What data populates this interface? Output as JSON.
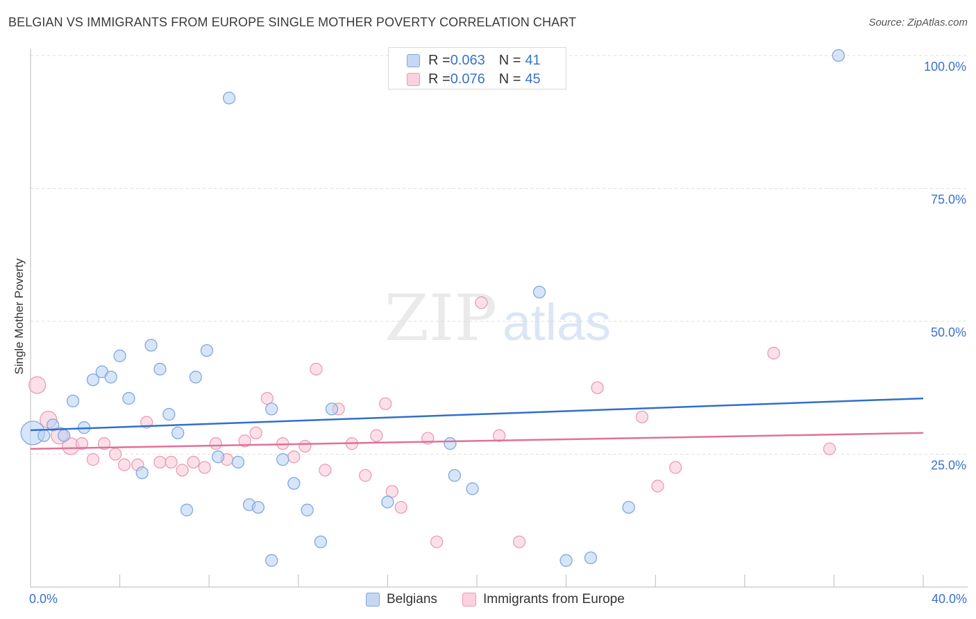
{
  "title": "BELGIAN VS IMMIGRANTS FROM EUROPE SINGLE MOTHER POVERTY CORRELATION CHART",
  "source": "Source: ZipAtlas.com",
  "watermark": {
    "zip": "ZIP",
    "atlas": "atlas"
  },
  "legend": {
    "rows": [
      {
        "r_label": "R = ",
        "r_value": "0.063",
        "n_label": "N = ",
        "n_value": "41"
      },
      {
        "r_label": "R = ",
        "r_value": "0.076",
        "n_label": "N = ",
        "n_value": "45"
      }
    ]
  },
  "colors": {
    "belgians_fill": "#b7d0f2",
    "belgians_stroke": "#7fa8e0",
    "belgians_line": "#2f6fcc",
    "immigrants_fill": "#f8c6d5",
    "immigrants_stroke": "#ec9bb4",
    "immigrants_line": "#e0709a",
    "axis_text": "#3a72c9",
    "grid": "#dddddd"
  },
  "chart_data": {
    "type": "scatter",
    "title": "BELGIAN VS IMMIGRANTS FROM EUROPE SINGLE MOTHER POVERTY CORRELATION CHART",
    "xlabel": "",
    "ylabel": "Single Mother Poverty",
    "xlim": [
      0,
      40
    ],
    "ylim": [
      0,
      102
    ],
    "x_tick_labels": [
      "0.0%",
      "40.0%"
    ],
    "y_ticks": [
      25,
      50,
      75,
      100
    ],
    "y_tick_labels": [
      "25.0%",
      "50.0%",
      "75.0%",
      "100.0%"
    ],
    "grid": "horizontal dashed",
    "legend_placement": "top-center and bottom",
    "series": [
      {
        "name": "Belgians",
        "R": 0.063,
        "N": 41,
        "trend": [
          [
            0,
            29.5
          ],
          [
            40,
            35.5
          ]
        ],
        "points": [
          [
            0.1,
            29.0,
            3
          ],
          [
            0.6,
            28.5,
            1
          ],
          [
            1.0,
            30.5,
            1
          ],
          [
            1.5,
            28.5,
            1
          ],
          [
            1.9,
            35.0,
            1
          ],
          [
            2.4,
            30.0,
            1
          ],
          [
            2.8,
            39.0,
            1
          ],
          [
            3.2,
            40.5,
            1
          ],
          [
            3.6,
            39.5,
            1
          ],
          [
            4.0,
            43.5,
            1
          ],
          [
            4.4,
            35.5,
            1
          ],
          [
            5.0,
            21.5,
            1
          ],
          [
            5.4,
            45.5,
            1
          ],
          [
            5.8,
            41.0,
            1
          ],
          [
            6.2,
            32.5,
            1
          ],
          [
            6.6,
            29.0,
            1
          ],
          [
            7.0,
            14.5,
            1
          ],
          [
            7.4,
            39.5,
            1
          ],
          [
            7.9,
            44.5,
            1
          ],
          [
            8.4,
            24.5,
            1
          ],
          [
            8.9,
            92.0,
            1
          ],
          [
            9.3,
            23.5,
            1
          ],
          [
            9.8,
            15.5,
            1
          ],
          [
            10.2,
            15.0,
            1
          ],
          [
            10.8,
            33.5,
            1
          ],
          [
            10.8,
            5.0,
            1
          ],
          [
            11.3,
            24.0,
            1
          ],
          [
            11.8,
            19.5,
            1
          ],
          [
            12.4,
            14.5,
            1
          ],
          [
            13.0,
            8.5,
            1
          ],
          [
            13.5,
            33.5,
            1
          ],
          [
            16.0,
            16.0,
            1
          ],
          [
            18.8,
            27.0,
            1
          ],
          [
            19.0,
            21.0,
            1
          ],
          [
            19.8,
            18.5,
            1
          ],
          [
            22.8,
            55.5,
            1
          ],
          [
            24.0,
            5.0,
            1
          ],
          [
            25.1,
            5.5,
            1
          ],
          [
            26.8,
            15.0,
            1
          ],
          [
            36.2,
            100.0,
            1
          ]
        ]
      },
      {
        "name": "Immigrants from Europe",
        "R": 0.076,
        "N": 45,
        "trend": [
          [
            0,
            26.0
          ],
          [
            40,
            29.0
          ]
        ],
        "points": [
          [
            0.3,
            38.0,
            2
          ],
          [
            0.8,
            31.5,
            2
          ],
          [
            1.3,
            28.5,
            2
          ],
          [
            1.8,
            26.5,
            2
          ],
          [
            2.3,
            27.0,
            1
          ],
          [
            2.8,
            24.0,
            1
          ],
          [
            3.3,
            27.0,
            1
          ],
          [
            3.8,
            25.0,
            1
          ],
          [
            4.2,
            23.0,
            1
          ],
          [
            4.8,
            23.0,
            1
          ],
          [
            5.2,
            31.0,
            1
          ],
          [
            5.8,
            23.5,
            1
          ],
          [
            6.3,
            23.5,
            1
          ],
          [
            6.8,
            22.0,
            1
          ],
          [
            7.3,
            23.5,
            1
          ],
          [
            7.8,
            22.5,
            1
          ],
          [
            8.3,
            27.0,
            1
          ],
          [
            8.8,
            24.0,
            1
          ],
          [
            9.6,
            27.5,
            1
          ],
          [
            10.1,
            29.0,
            1
          ],
          [
            10.6,
            35.5,
            1
          ],
          [
            11.3,
            27.0,
            1
          ],
          [
            11.8,
            24.5,
            1
          ],
          [
            12.3,
            26.5,
            1
          ],
          [
            12.8,
            41.0,
            1
          ],
          [
            13.2,
            22.0,
            1
          ],
          [
            13.8,
            33.5,
            1
          ],
          [
            14.4,
            27.0,
            1
          ],
          [
            15.0,
            21.0,
            1
          ],
          [
            15.5,
            28.5,
            1
          ],
          [
            15.9,
            34.5,
            1
          ],
          [
            16.2,
            18.0,
            1
          ],
          [
            16.6,
            15.0,
            1
          ],
          [
            17.8,
            28.0,
            1
          ],
          [
            18.2,
            8.5,
            1
          ],
          [
            20.2,
            53.5,
            1
          ],
          [
            21.0,
            28.5,
            1
          ],
          [
            21.9,
            8.5,
            1
          ],
          [
            25.4,
            37.5,
            1
          ],
          [
            27.4,
            32.0,
            1
          ],
          [
            28.1,
            19.0,
            1
          ],
          [
            28.9,
            22.5,
            1
          ],
          [
            33.3,
            44.0,
            1
          ],
          [
            35.8,
            26.0,
            1
          ]
        ]
      }
    ]
  }
}
